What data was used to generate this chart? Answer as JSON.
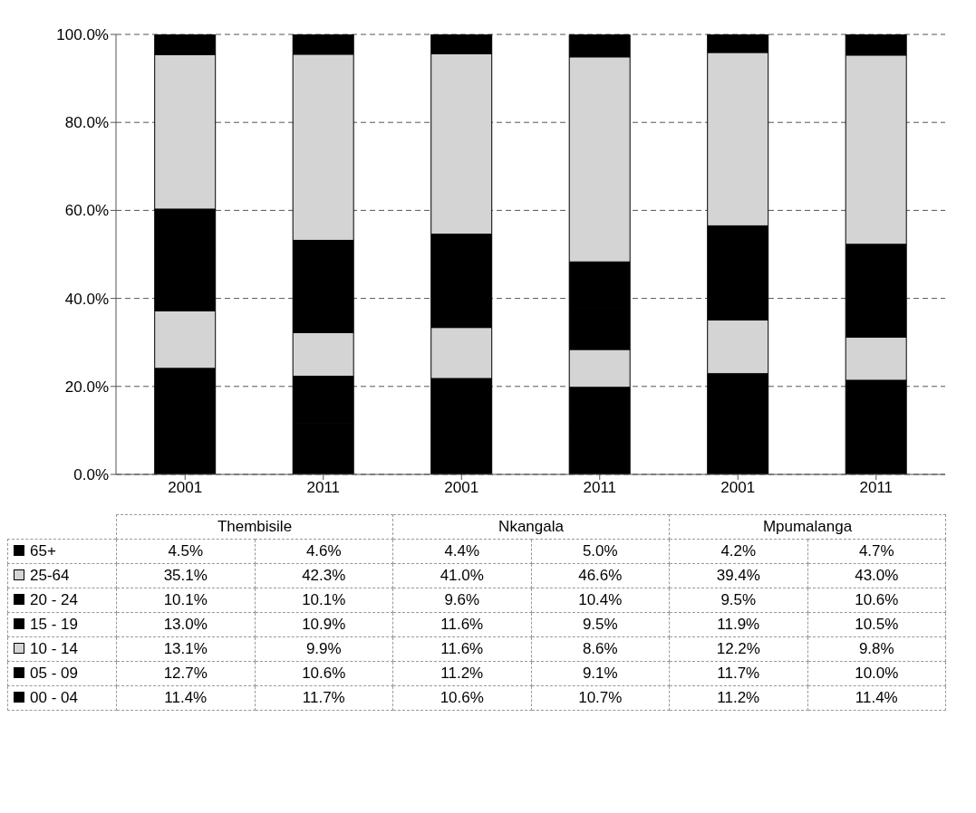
{
  "chart_data": {
    "type": "bar",
    "stacked": true,
    "categories": [
      "2001",
      "2011",
      "2001",
      "2011",
      "2001",
      "2011"
    ],
    "annotations": [
      "Thembisile",
      "Nkangala",
      "Mpumalanga"
    ],
    "series": [
      {
        "name": "00 - 04",
        "color": "#000000",
        "values": [
          11.4,
          11.7,
          10.6,
          10.7,
          11.2,
          11.4
        ],
        "value_labels": [
          "11.4%",
          "11.7%",
          "10.6%",
          "10.7%",
          "11.2%",
          "11.4%"
        ]
      },
      {
        "name": "05 - 09",
        "color": "#000000",
        "values": [
          12.7,
          10.6,
          11.2,
          9.1,
          11.7,
          10.0
        ],
        "value_labels": [
          "12.7%",
          "10.6%",
          "11.2%",
          "9.1%",
          "11.7%",
          "10.0%"
        ]
      },
      {
        "name": "10 - 14",
        "color": "#d4d4d4",
        "values": [
          13.1,
          9.9,
          11.6,
          8.6,
          12.2,
          9.8
        ],
        "value_labels": [
          "13.1%",
          "9.9%",
          "11.6%",
          "8.6%",
          "12.2%",
          "9.8%"
        ]
      },
      {
        "name": "15 - 19",
        "color": "#000000",
        "values": [
          13.0,
          10.9,
          11.6,
          9.5,
          11.9,
          10.5
        ],
        "value_labels": [
          "13.0%",
          "10.9%",
          "11.6%",
          "9.5%",
          "11.9%",
          "10.5%"
        ]
      },
      {
        "name": "20 - 24",
        "color": "#000000",
        "values": [
          10.1,
          10.1,
          9.6,
          10.4,
          9.5,
          10.6
        ],
        "value_labels": [
          "10.1%",
          "10.1%",
          "9.6%",
          "10.4%",
          "9.5%",
          "10.6%"
        ]
      },
      {
        "name": "25-64",
        "color": "#d4d4d4",
        "values": [
          35.1,
          42.3,
          41.0,
          46.6,
          39.4,
          43.0
        ],
        "value_labels": [
          "35.1%",
          "42.3%",
          "41.0%",
          "46.6%",
          "39.4%",
          "43.0%"
        ]
      },
      {
        "name": "65+",
        "color": "#000000",
        "values": [
          4.5,
          4.6,
          4.4,
          5.0,
          4.2,
          4.7
        ],
        "value_labels": [
          "4.5%",
          "4.6%",
          "4.4%",
          "5.0%",
          "4.2%",
          "4.7%"
        ]
      }
    ],
    "ylim": [
      0,
      100
    ],
    "yticks": [
      {
        "value": 0,
        "label": "0.0%"
      },
      {
        "value": 20,
        "label": "20.0%"
      },
      {
        "value": 40,
        "label": "40.0%"
      },
      {
        "value": 60,
        "label": "60.0%"
      },
      {
        "value": 80,
        "label": "80.0%"
      },
      {
        "value": 100,
        "label": "100.0%"
      }
    ],
    "grid": "y",
    "legend": "bottom"
  }
}
